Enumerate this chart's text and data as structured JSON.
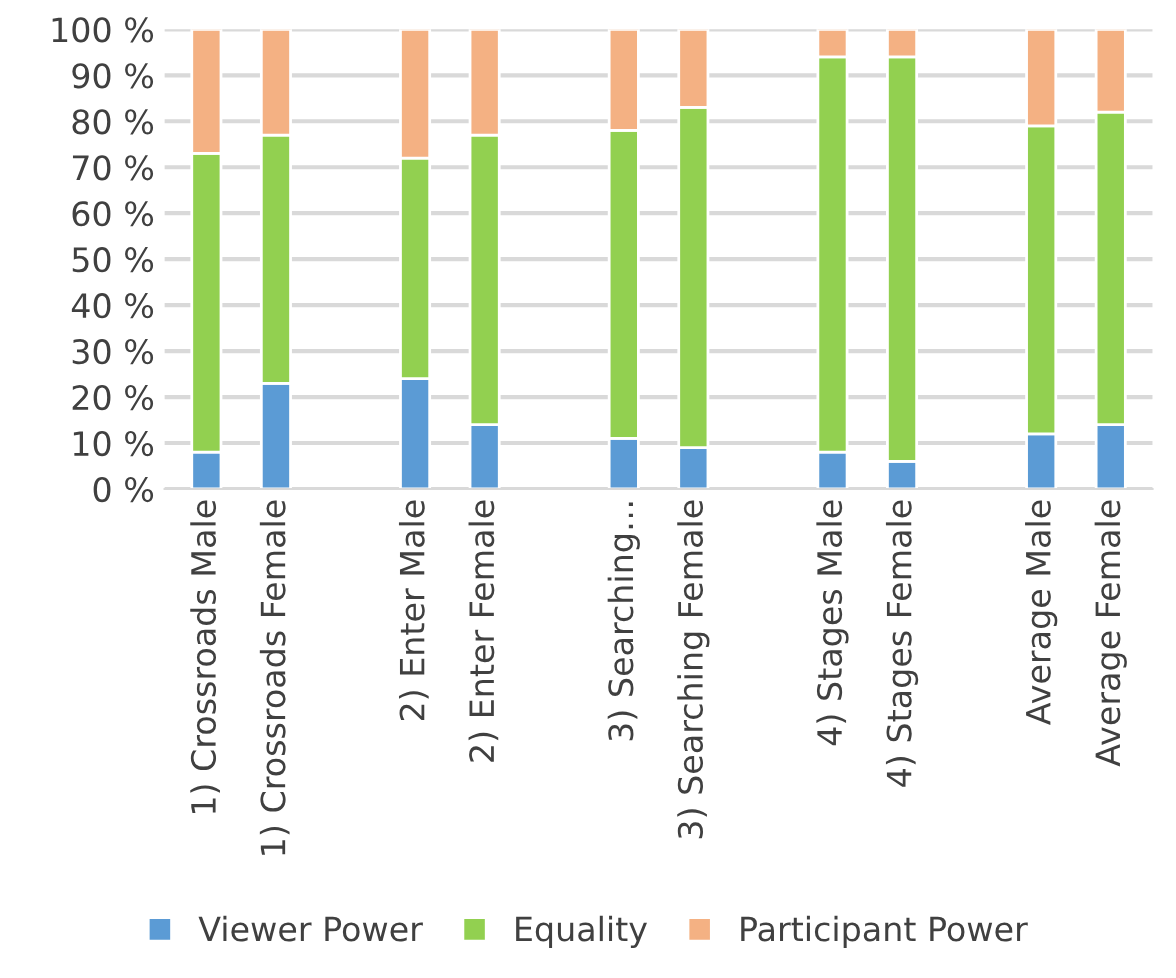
{
  "chart_data": {
    "type": "bar",
    "stacked": true,
    "categories": [
      "1) Crossroads Male",
      "1) Crossroads Female",
      null,
      "2) Enter Male",
      "2) Enter Female",
      null,
      "3) Searching…",
      "3) Searching Female",
      null,
      "4) Stages Male",
      "4) Stages Female",
      null,
      "Average Male",
      "Average Female"
    ],
    "series": [
      {
        "name": "Viewer Power",
        "color": "#5b9bd5",
        "values": [
          8,
          23,
          null,
          24,
          14,
          null,
          11,
          9,
          null,
          8,
          6,
          null,
          12,
          14
        ]
      },
      {
        "name": "Equality",
        "color": "#92d050",
        "values": [
          65,
          54,
          null,
          48,
          63,
          null,
          67,
          74,
          null,
          86,
          88,
          null,
          67,
          68
        ]
      },
      {
        "name": "Participant Power",
        "color": "#f4b183",
        "values": [
          27,
          23,
          null,
          28,
          23,
          null,
          22,
          17,
          null,
          6,
          6,
          null,
          21,
          18
        ]
      }
    ],
    "ylim": [
      0,
      100
    ],
    "yticks": [
      {
        "value": 0,
        "label": "0 %"
      },
      {
        "value": 10,
        "label": "10 %"
      },
      {
        "value": 20,
        "label": "20 %"
      },
      {
        "value": 30,
        "label": "30 %"
      },
      {
        "value": 40,
        "label": "40 %"
      },
      {
        "value": 50,
        "label": "50 %"
      },
      {
        "value": 60,
        "label": "60 %"
      },
      {
        "value": 70,
        "label": "70 %"
      },
      {
        "value": 80,
        "label": "80 %"
      },
      {
        "value": 90,
        "label": "90 %"
      },
      {
        "value": 100,
        "label": "100 %"
      }
    ],
    "grid": "y",
    "legend": "bottom"
  }
}
